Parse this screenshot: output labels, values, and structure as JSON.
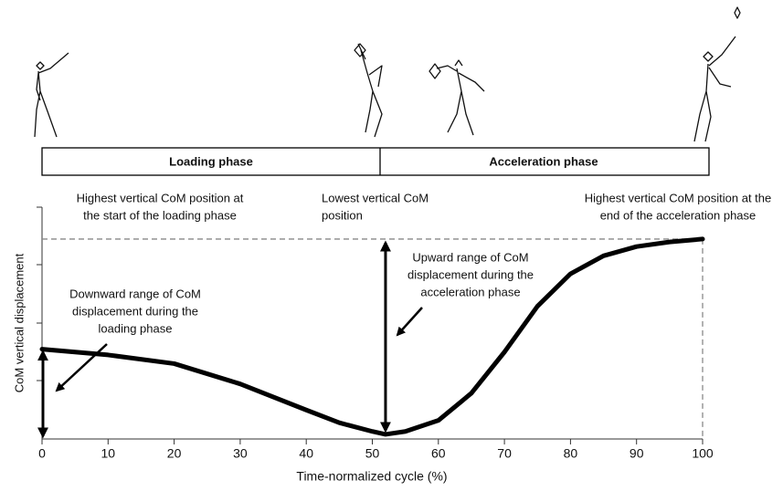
{
  "chart_data": {
    "type": "line",
    "phases": [
      "Loading phase",
      "Acceleration phase"
    ],
    "x": [
      0,
      10,
      20,
      30,
      40,
      45,
      50,
      52,
      55,
      60,
      65,
      70,
      75,
      80,
      85,
      90,
      95,
      100
    ],
    "series": [
      {
        "color": "#000000",
        "values": [
          1.55,
          1.45,
          1.3,
          0.95,
          0.5,
          0.28,
          0.13,
          0.08,
          0.13,
          0.32,
          0.79,
          1.5,
          2.29,
          2.85,
          3.16,
          3.32,
          3.4,
          3.45
        ]
      }
    ],
    "xlim": [
      0,
      100
    ],
    "xticks": [
      0,
      10,
      20,
      30,
      40,
      50,
      60,
      70,
      80,
      90,
      100
    ],
    "ylim": [
      0,
      4
    ],
    "xlabel": "Time-normalized cycle (%)",
    "ylabel": "CoM vertical displacement",
    "annotations": [
      [
        "Highest vertical CoM position at",
        "the start of the loading phase"
      ],
      [
        "Lowest vertical CoM",
        "position"
      ],
      [
        "Highest vertical CoM position at the",
        "end of the acceleration phase"
      ],
      [
        "Upward range of CoM",
        "displacement during the",
        "acceleration phase"
      ],
      [
        "Downward range of CoM",
        "displacement during the",
        "loading phase"
      ]
    ]
  }
}
